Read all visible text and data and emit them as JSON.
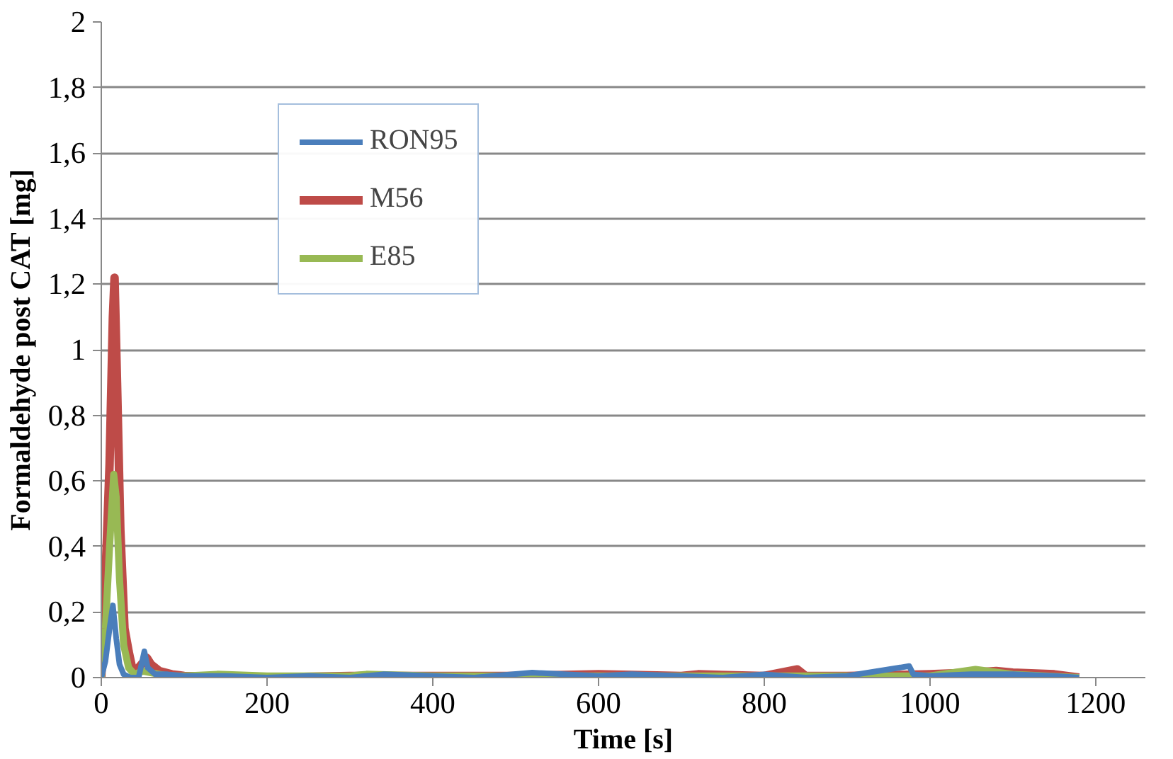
{
  "chart_data": {
    "type": "line",
    "xlabel": "Time [s]",
    "ylabel": "Formaldehyde post CAT [mg]",
    "xlim": [
      0,
      1260
    ],
    "xticks": [
      0,
      200,
      400,
      600,
      800,
      1000,
      1200
    ],
    "ylim": [
      0,
      2
    ],
    "yticks": [
      0,
      {
        "value": 0.2,
        "label": "0,2"
      },
      {
        "value": 0.4,
        "label": "0,4"
      },
      {
        "value": 0.6,
        "label": "0,6"
      },
      {
        "value": 0.8,
        "label": "0,8"
      },
      1,
      {
        "value": 1.2,
        "label": "1,2"
      },
      {
        "value": 1.4,
        "label": "1,4"
      },
      {
        "value": 1.6,
        "label": "1,6"
      },
      {
        "value": 1.8,
        "label": "1,8"
      },
      2
    ],
    "grid": "y",
    "legend": "top left",
    "marker": "none",
    "line_style": "solid",
    "series": [
      {
        "name": "RON95",
        "color": "#4a7ebb",
        "x": [
          0,
          5,
          10,
          14,
          18,
          22,
          27,
          35,
          45,
          52,
          56,
          65,
          80,
          100,
          150,
          200,
          250,
          300,
          340,
          400,
          450,
          520,
          600,
          640,
          700,
          750,
          800,
          850,
          900,
          975,
          980,
          1000,
          1050,
          1100,
          1150,
          1180
        ],
        "values": [
          0,
          0.05,
          0.15,
          0.22,
          0.12,
          0.04,
          0.01,
          0,
          0,
          0.08,
          0.03,
          0.01,
          0.01,
          0.005,
          0.005,
          0,
          0.005,
          0,
          0.01,
          0.005,
          0,
          0.015,
          0.005,
          0.01,
          0.005,
          0,
          0.01,
          0,
          0.005,
          0.035,
          0.01,
          0.005,
          0.01,
          0.01,
          0.005,
          0
        ]
      },
      {
        "name": "M56",
        "color": "#be4b48",
        "x": [
          0,
          5,
          10,
          14,
          16,
          19,
          23,
          28,
          33,
          38,
          45,
          55,
          60,
          70,
          85,
          100,
          200,
          300,
          400,
          500,
          600,
          700,
          720,
          800,
          840,
          850,
          900,
          1000,
          1050,
          1080,
          1100,
          1150,
          1180
        ],
        "values": [
          0,
          0.3,
          0.65,
          1.1,
          1.22,
          0.9,
          0.45,
          0.15,
          0.08,
          0.02,
          0.03,
          0.06,
          0.04,
          0.02,
          0.01,
          0.005,
          0,
          0.005,
          0.005,
          0.005,
          0.01,
          0.005,
          0.01,
          0.005,
          0.025,
          0.005,
          0.005,
          0.01,
          0.015,
          0.02,
          0.015,
          0.01,
          0
        ]
      },
      {
        "name": "E85",
        "color": "#98b954",
        "x": [
          0,
          5,
          10,
          15,
          18,
          22,
          27,
          33,
          40,
          50,
          60,
          80,
          100,
          140,
          200,
          300,
          320,
          400,
          500,
          600,
          700,
          800,
          900,
          1000,
          1055,
          1100,
          1180
        ],
        "values": [
          0,
          0.15,
          0.4,
          0.62,
          0.55,
          0.3,
          0.1,
          0.03,
          0.01,
          0.02,
          0.015,
          0.005,
          0.005,
          0.01,
          0.005,
          0.005,
          0.01,
          0.005,
          0.005,
          0.005,
          0.005,
          0.005,
          0.005,
          0.005,
          0.025,
          0.01,
          0
        ]
      }
    ]
  }
}
